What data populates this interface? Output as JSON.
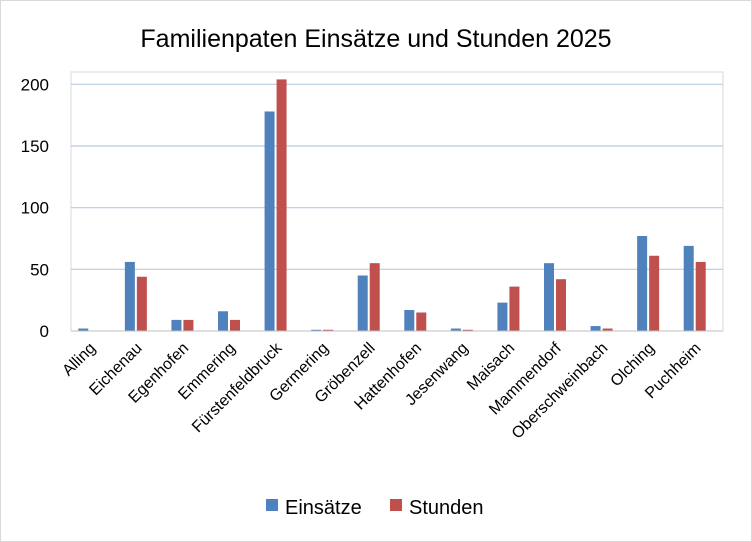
{
  "chart_data": {
    "type": "bar",
    "title": "Familienpaten Einsätze und Stunden 2025",
    "xlabel": "",
    "ylabel": "",
    "ylim": [
      0,
      210
    ],
    "yticks": [
      0,
      50,
      100,
      150,
      200
    ],
    "grid": true,
    "legend_position": "bottom",
    "categories": [
      "Alling",
      "Eichenau",
      "Egenhofen",
      "Emmering",
      "Fürstenfeldbruck",
      "Germering",
      "Gröbenzell",
      "Hattenhofen",
      "Jesenwang",
      "Maisach",
      "Mammendorf",
      "Oberschweinbach",
      "Olching",
      "Puchheim"
    ],
    "series": [
      {
        "name": "Einsätze",
        "color": "#4f81bd",
        "values": [
          2,
          56,
          9,
          16,
          178,
          1,
          45,
          17,
          2,
          23,
          55,
          4,
          77,
          69
        ]
      },
      {
        "name": "Stunden",
        "color": "#c0504d",
        "values": [
          0,
          44,
          9,
          9,
          204,
          1,
          55,
          15,
          1,
          36,
          42,
          2,
          61,
          56
        ]
      }
    ]
  }
}
